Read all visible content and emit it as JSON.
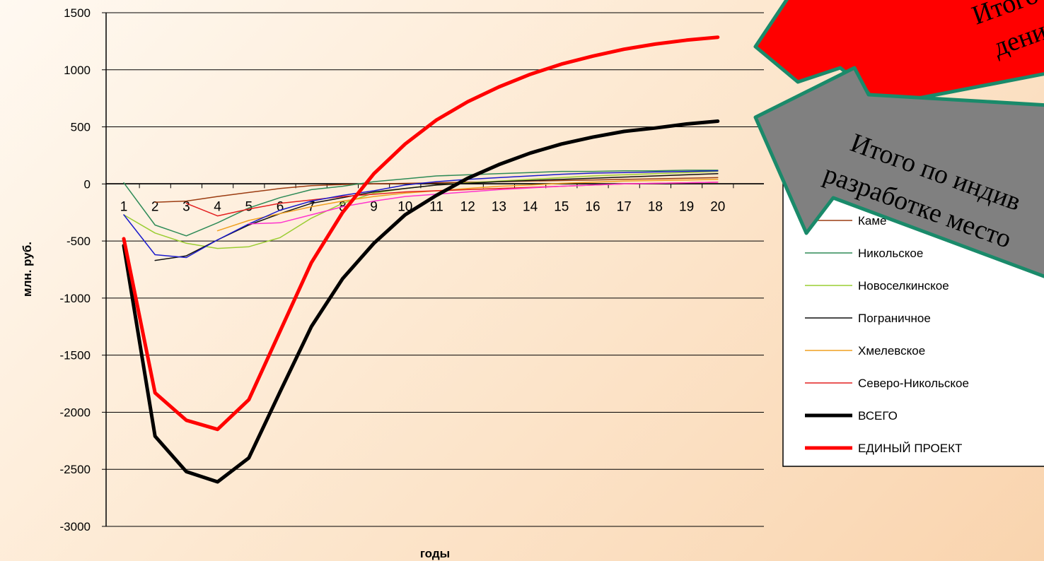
{
  "chart_data": {
    "type": "line",
    "xlabel": "годы",
    "ylabel": "млн. руб.",
    "ylim": [
      -3000,
      1500
    ],
    "yticks": [
      "1500",
      "1000",
      "500",
      "0",
      "-500",
      "-1000",
      "-1500",
      "-2000",
      "-2500",
      "-3000"
    ],
    "x": [
      1,
      2,
      3,
      4,
      5,
      6,
      7,
      8,
      9,
      10,
      11,
      12,
      13,
      14,
      15,
      16,
      17,
      18,
      19,
      20
    ],
    "xtick_labels": [
      "1",
      "2",
      "3",
      "4",
      "5",
      "6",
      "7",
      "8",
      "9",
      "10",
      "11",
      "12",
      "13",
      "14",
      "15",
      "16",
      "17",
      "18",
      "19",
      "20"
    ],
    "grid": "horizontal",
    "legend_position": "right",
    "series": [
      {
        "name": "Камышловское",
        "color": "#9c3d12",
        "width": 1.5,
        "legend": true,
        "values": [
          null,
          -160,
          -150,
          -110,
          -75,
          -40,
          -15,
          -5,
          0,
          5,
          10,
          15,
          20,
          25,
          30,
          35,
          40,
          45,
          50,
          55
        ]
      },
      {
        "name": "Никольское",
        "color": "#2e8b57",
        "width": 1.5,
        "legend": true,
        "values": [
          10,
          -360,
          -455,
          -340,
          -210,
          -120,
          -50,
          -20,
          20,
          45,
          70,
          80,
          90,
          100,
          110,
          110,
          115,
          115,
          120,
          120
        ]
      },
      {
        "name": "Новоселкинское",
        "color": "#9acd32",
        "width": 1.5,
        "legend": true,
        "values": [
          -270,
          -430,
          -520,
          -565,
          -550,
          -470,
          -300,
          -170,
          -80,
          -40,
          -10,
          10,
          25,
          40,
          55,
          70,
          80,
          90,
          100,
          110
        ]
      },
      {
        "name": "Пограничное",
        "color": "#111111",
        "width": 1.5,
        "legend": true,
        "values": [
          null,
          -670,
          -630,
          -490,
          -360,
          -260,
          -170,
          -120,
          -70,
          -40,
          -10,
          5,
          20,
          30,
          40,
          50,
          60,
          70,
          80,
          90
        ]
      },
      {
        "name": "Хмелевское",
        "color": "#f0a020",
        "width": 1.5,
        "legend": true,
        "values": [
          null,
          null,
          null,
          -410,
          -320,
          -260,
          -200,
          -150,
          -110,
          -80,
          -60,
          -40,
          -20,
          -10,
          5,
          15,
          25,
          30,
          35,
          40
        ]
      },
      {
        "name": "Северо-Никольское",
        "color": "#e32020",
        "width": 1.5,
        "legend": true,
        "values": [
          null,
          null,
          -170,
          -280,
          -220,
          -170,
          -140,
          -110,
          -90,
          -70,
          -60,
          -50,
          -40,
          -30,
          -20,
          -10,
          0,
          5,
          10,
          15
        ]
      },
      {
        "name": "",
        "color": "#1a1acc",
        "width": 1.5,
        "legend": false,
        "values": [
          -270,
          -620,
          -645,
          -490,
          -350,
          -230,
          -150,
          -100,
          -60,
          -10,
          20,
          40,
          55,
          70,
          85,
          95,
          100,
          105,
          110,
          115
        ]
      },
      {
        "name": "",
        "color": "#ff33cc",
        "width": 1.5,
        "legend": false,
        "values": [
          null,
          null,
          null,
          null,
          -350,
          -340,
          -270,
          -200,
          -150,
          -110,
          -90,
          -70,
          -50,
          -35,
          -20,
          -10,
          0,
          5,
          10,
          15
        ]
      },
      {
        "name": "ВСЕГО",
        "color": "#000000",
        "width": 5,
        "legend": true,
        "values": [
          -540,
          -2210,
          -2520,
          -2610,
          -2400,
          -1820,
          -1250,
          -830,
          -520,
          -270,
          -100,
          50,
          170,
          270,
          350,
          410,
          460,
          490,
          525,
          550
        ]
      },
      {
        "name": "ЕДИНЫЙ ПРОЕКТ",
        "color": "#ff0000",
        "width": 5,
        "legend": true,
        "values": [
          -480,
          -1830,
          -2070,
          -2150,
          -1890,
          -1290,
          -690,
          -250,
          90,
          350,
          560,
          720,
          850,
          960,
          1050,
          1120,
          1180,
          1225,
          1260,
          1285
        ]
      }
    ],
    "annotations": [
      {
        "kind": "arrow-callout",
        "fill": "#ff0000",
        "lines": [
          "Итого по",
          "дений ко"
        ]
      },
      {
        "kind": "arrow-callout",
        "fill": "#808080",
        "lines": [
          "Итого по индив",
          "разработке место"
        ]
      }
    ]
  },
  "legend_visible_labels": [
    "Каме",
    "Никольское",
    "Новоселкинское",
    "Пограничное",
    "Хмелевское",
    "Северо-Никольское",
    "ВСЕГО",
    "ЕДИНЫЙ ПРОЕКТ"
  ]
}
